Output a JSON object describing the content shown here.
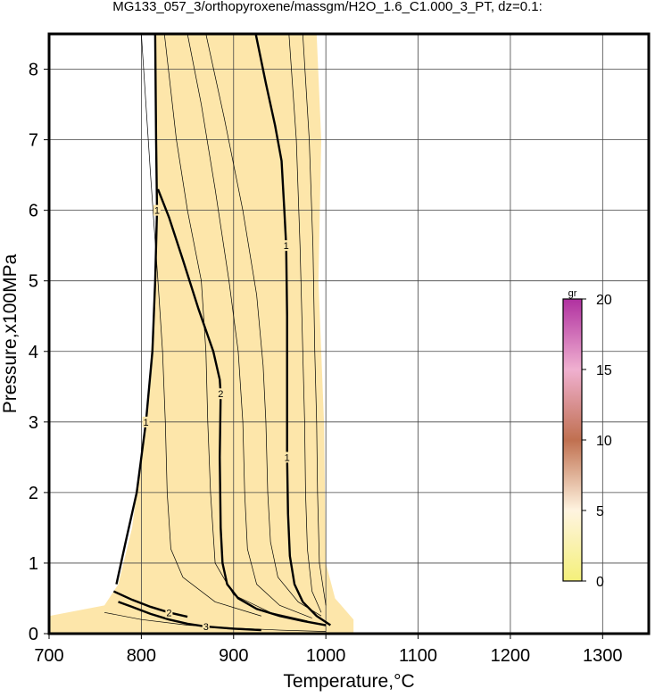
{
  "chart_data": {
    "type": "contour",
    "title": "MG133_057_3/orthopyroxene/massgm/H2O_1.6_C1.000_3_PT, dz=0.1:",
    "xlabel": "Temperature,°C",
    "ylabel": "Pressure,x100MPa",
    "xlim": [
      700,
      1350
    ],
    "ylim": [
      0,
      8.5
    ],
    "xticks": [
      700,
      800,
      900,
      1000,
      1100,
      1200,
      1300
    ],
    "yticks": [
      0,
      1,
      2,
      3,
      4,
      5,
      6,
      7,
      8
    ],
    "grid": true,
    "field": {
      "color": "#fde6aa",
      "x": [
        815,
        990,
        995,
        992,
        998,
        1000,
        1010,
        1030,
        1030,
        700,
        700,
        760,
        775,
        790,
        800,
        808,
        813,
        816,
        817,
        815
      ],
      "y": [
        8.5,
        8.5,
        7,
        5,
        3,
        1,
        0.5,
        0.2,
        0,
        0,
        0.25,
        0.4,
        0.7,
        1.5,
        2.5,
        3.5,
        4.5,
        5.5,
        6.5,
        7.5
      ]
    },
    "contours": [
      {
        "level": 1,
        "x": [
          773,
          783,
          795,
          805,
          812,
          815,
          817,
          816,
          815
        ],
        "y": [
          0.7,
          1.3,
          2,
          3,
          4,
          5,
          6,
          7,
          8.5
        ]
      },
      {
        "level": 2,
        "x": [
          818,
          830,
          845,
          862,
          878,
          885,
          886,
          885,
          886,
          888,
          893,
          905,
          925,
          950,
          975,
          1000
        ],
        "y": [
          6.3,
          5.9,
          5.3,
          4.6,
          4.0,
          3.6,
          3.4,
          2.5,
          1.5,
          1.0,
          0.7,
          0.5,
          0.35,
          0.25,
          0.18,
          0.12
        ]
      },
      {
        "level": 1,
        "x": [
          924,
          935,
          945,
          952,
          955,
          957,
          958,
          958,
          958,
          959,
          961,
          966,
          975,
          990,
          1005
        ],
        "y": [
          8.5,
          7.8,
          7.2,
          6.7,
          6,
          5.5,
          4.5,
          3.5,
          2.5,
          1.7,
          1.1,
          0.7,
          0.45,
          0.25,
          0.12
        ]
      },
      {
        "level": 3,
        "x": [
          775,
          790,
          810,
          830,
          850,
          870,
          900,
          930
        ],
        "y": [
          0.45,
          0.38,
          0.28,
          0.2,
          0.14,
          0.1,
          0.07,
          0.05
        ]
      },
      {
        "level": 2,
        "x": [
          770,
          790,
          810,
          830,
          850
        ],
        "y": [
          0.6,
          0.48,
          0.38,
          0.3,
          0.24
        ]
      }
    ],
    "thin_contours": [
      {
        "x": [
          825,
          838,
          850,
          865,
          870,
          872,
          875,
          880,
          900,
          940,
          980
        ],
        "y": [
          8.5,
          7,
          6,
          5,
          4,
          3,
          2,
          1,
          0.55,
          0.3,
          0.18
        ]
      },
      {
        "x": [
          850,
          865,
          880,
          895,
          905,
          910,
          912,
          915,
          925,
          950,
          985
        ],
        "y": [
          8.5,
          7.5,
          6.3,
          5,
          4,
          3,
          2,
          1.2,
          0.7,
          0.4,
          0.22
        ]
      },
      {
        "x": [
          870,
          890,
          910,
          925,
          932,
          935,
          937,
          940,
          948,
          970,
          995
        ],
        "y": [
          8.5,
          7.3,
          6,
          4.8,
          3.8,
          3,
          2,
          1.3,
          0.8,
          0.45,
          0.25
        ]
      },
      {
        "x": [
          800,
          810,
          818,
          823,
          826,
          828,
          832,
          845,
          880,
          930
        ],
        "y": [
          8.5,
          6.5,
          5,
          4,
          3,
          2,
          1.2,
          0.8,
          0.45,
          0.25
        ]
      },
      {
        "x": [
          960,
          968,
          972,
          975,
          977,
          978,
          980,
          985,
          995
        ],
        "y": [
          8.5,
          7,
          5.5,
          4,
          3,
          2,
          1.2,
          0.6,
          0.3
        ]
      },
      {
        "x": [
          975,
          982,
          986,
          988,
          990,
          991,
          993,
          1000
        ],
        "y": [
          8.5,
          7,
          5.5,
          4,
          3,
          2,
          1,
          0.4
        ]
      },
      {
        "x": [
          760,
          800,
          850,
          900,
          950,
          1000
        ],
        "y": [
          0.3,
          0.2,
          0.12,
          0.08,
          0.05,
          0.03
        ]
      }
    ],
    "colorbar": {
      "label": "gr",
      "lim": [
        0,
        20
      ],
      "ticks": [
        0,
        5,
        10,
        15,
        20
      ],
      "colors": [
        "#f4f07a",
        "#fff4e0",
        "#c07050",
        "#f0b0d0",
        "#b030a0"
      ]
    }
  }
}
